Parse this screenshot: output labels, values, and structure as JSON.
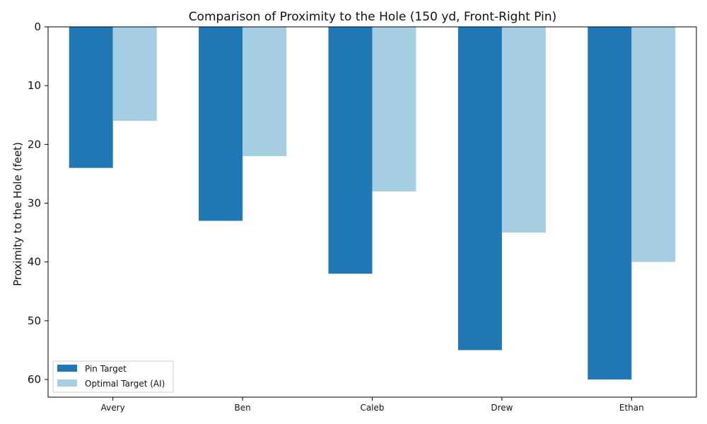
{
  "chart_data": {
    "type": "bar",
    "title": "Comparison of Proximity to the Hole (150 yd, Front-Right Pin)",
    "xlabel": "",
    "ylabel": "Proximity to the Hole (feet)",
    "categories": [
      "Avery",
      "Ben",
      "Caleb",
      "Drew",
      "Ethan"
    ],
    "series": [
      {
        "name": "Pin Target",
        "color": "#1f78b4",
        "values": [
          24,
          33,
          42,
          55,
          60
        ]
      },
      {
        "name": "Optimal Target (AI)",
        "color": "#a6cee3",
        "values": [
          16,
          22,
          28,
          35,
          40
        ]
      }
    ],
    "ylim": [
      0,
      63
    ],
    "y_inverted": true,
    "yticks": [
      0,
      10,
      20,
      30,
      40,
      50,
      60
    ],
    "ytick_labels": [
      "0",
      "10",
      "20",
      "30",
      "40",
      "50",
      "60"
    ],
    "grid": false,
    "legend": {
      "position": "bottom-left",
      "labels": [
        "Pin Target",
        "Optimal Target (AI)"
      ]
    }
  }
}
